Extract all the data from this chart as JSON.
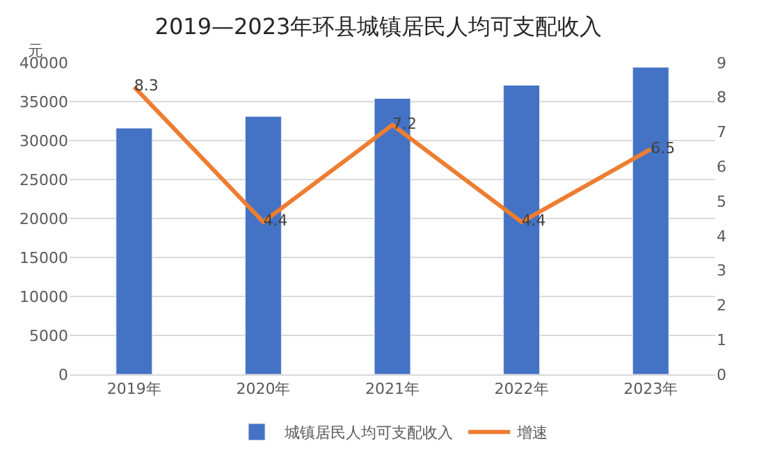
{
  "chart_data": {
    "type": "bar",
    "title": "2019—2023年环县城镇居民人均可支配收入",
    "ylabel": "元",
    "categories": [
      "2019年",
      "2020年",
      "2021年",
      "2022年",
      "2023年"
    ],
    "series": [
      {
        "name": "城镇居民人均可支配收入",
        "color": "#4472c4",
        "values": [
          31600,
          33100,
          35400,
          37100,
          39400
        ]
      },
      {
        "name": "增速",
        "type": "line",
        "axis": "y2",
        "color": "#ed7d31",
        "values": [
          8.3,
          4.4,
          7.2,
          4.4,
          6.5
        ],
        "data_labels": true,
        "marker": "none"
      }
    ],
    "ylim": [
      0,
      40000
    ],
    "yticks": [
      0,
      5000,
      10000,
      15000,
      20000,
      25000,
      30000,
      35000,
      40000
    ],
    "y2lim": [
      0,
      9
    ],
    "y2ticks": [
      0,
      1,
      2,
      3,
      4,
      5,
      6,
      7,
      8,
      9
    ],
    "grid": "y",
    "legend": "bottom"
  }
}
